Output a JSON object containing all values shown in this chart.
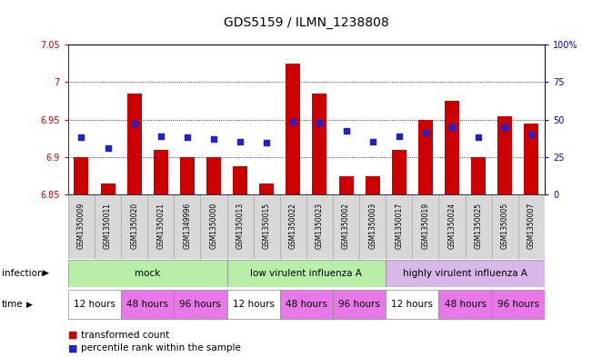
{
  "title": "GDS5159 / ILMN_1238808",
  "samples": [
    "GSM1350009",
    "GSM1350011",
    "GSM1350020",
    "GSM1350021",
    "GSM1349996",
    "GSM1350000",
    "GSM1350013",
    "GSM1350015",
    "GSM1350022",
    "GSM1350023",
    "GSM1350002",
    "GSM1350003",
    "GSM1350017",
    "GSM1350019",
    "GSM1350024",
    "GSM1350025",
    "GSM1350005",
    "GSM1350007"
  ],
  "bar_values": [
    6.9,
    6.865,
    6.985,
    6.91,
    6.9,
    6.9,
    6.888,
    6.865,
    7.025,
    6.985,
    6.875,
    6.875,
    6.91,
    6.95,
    6.975,
    6.9,
    6.955,
    6.945
  ],
  "bar_base": 6.85,
  "dot_values": [
    6.927,
    6.912,
    6.945,
    6.928,
    6.927,
    6.924,
    6.921,
    6.919,
    6.947,
    6.946,
    6.935,
    6.92,
    6.928,
    6.933,
    6.94,
    6.927,
    6.94,
    6.93
  ],
  "infection_groups": [
    {
      "label": "mock",
      "start": 0,
      "end": 6,
      "color": "#b8eea8"
    },
    {
      "label": "low virulent influenza A",
      "start": 6,
      "end": 12,
      "color": "#b8eea8"
    },
    {
      "label": "highly virulent influenza A",
      "start": 12,
      "end": 18,
      "color": "#d8b8e8"
    }
  ],
  "time_labels": [
    "12 hours",
    "48 hours",
    "96 hours",
    "12 hours",
    "48 hours",
    "96 hours",
    "12 hours",
    "48 hours",
    "96 hours"
  ],
  "time_starts": [
    0,
    2,
    4,
    6,
    8,
    10,
    12,
    14,
    16
  ],
  "time_ends": [
    2,
    4,
    6,
    8,
    10,
    12,
    14,
    16,
    18
  ],
  "time_colors": [
    "#ffffff",
    "#e878e8",
    "#e878e8",
    "#ffffff",
    "#e878e8",
    "#e878e8",
    "#ffffff",
    "#e878e8",
    "#e878e8"
  ],
  "ylim": [
    6.85,
    7.05
  ],
  "yticks_left": [
    6.85,
    6.9,
    6.95,
    7.0,
    7.05
  ],
  "ytick_labels_left": [
    "6.85",
    "6.9",
    "6.95",
    "7",
    "7.05"
  ],
  "right_yticks_pct": [
    0,
    25,
    50,
    75,
    100
  ],
  "bar_color": "#cc0000",
  "dot_color": "#2222cc",
  "background_color": "#ffffff",
  "plot_bg": "#ffffff",
  "gray_bg": "#d8d8d8",
  "title_fontsize": 10,
  "tick_fontsize": 7,
  "annot_fontsize": 7.5
}
